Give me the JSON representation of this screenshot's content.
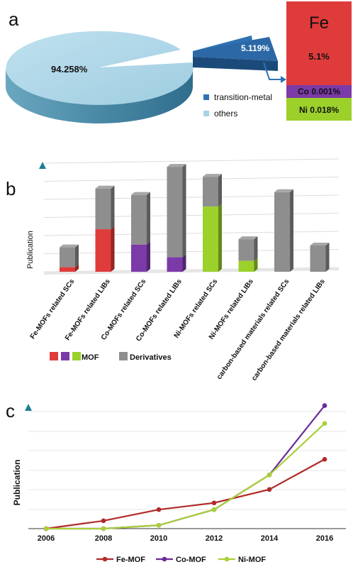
{
  "colors": {
    "fe": "#e03b3b",
    "co": "#7b3aa8",
    "ni": "#9bd12a",
    "gray": "#8e8e8e",
    "pie_others": "#a8d4e6",
    "pie_tm": "#2f72b3",
    "fe_line": "#b12a2a",
    "co_line": "#6a2d96",
    "ni_line": "#a8cf3a",
    "axis_teal": "#1c7f94"
  },
  "panel_a": {
    "label": "a",
    "others_pct": "94.258%",
    "tm_pct": "5.119%",
    "legend_tm": "transition-metal",
    "legend_others": "others",
    "breakdown_title": "Fe",
    "fe_pct": "5.1%",
    "co_label": "Co  0.001%",
    "ni_label": "Ni  0.018%"
  },
  "panel_b": {
    "label": "b",
    "ylabel": "Publication",
    "legend_mof": "MOF",
    "legend_derivatives": "Derivatives"
  },
  "panel_c": {
    "label": "c",
    "ylabel": "Publication"
  },
  "chart_data": [
    {
      "type": "pie",
      "categories": [
        "others",
        "transition-metal"
      ],
      "values": [
        94.258,
        5.119
      ],
      "breakdown": {
        "Fe": 5.1,
        "Co": 0.001,
        "Ni": 0.018
      }
    },
    {
      "type": "bar",
      "categories": [
        "Fe-MOFs related SCs",
        "Fe-MOFs related LIBs",
        "Co-MOFs related SCs",
        "Co-MOFs related LIBs",
        "Ni-MOFs related SCs",
        "Ni-MOFs related LIBs",
        "carbon-based materials related SCs",
        "carbon-based materials related  LIBs"
      ],
      "series": [
        {
          "name": "MOF",
          "values": [
            0.5,
            4.7,
            3.0,
            1.6,
            7.2,
            1.2,
            0,
            0
          ],
          "colors": [
            "#e03b3b",
            "#e03b3b",
            "#7b3aa8",
            "#7b3aa8",
            "#9bd12a",
            "#9bd12a",
            "#8e8e8e",
            "#8e8e8e"
          ]
        },
        {
          "name": "Derivatives",
          "values": [
            2.2,
            4.5,
            5.5,
            10.0,
            3.3,
            2.4,
            8.8,
            2.9
          ]
        }
      ],
      "ylim": [
        0,
        12
      ]
    },
    {
      "type": "line",
      "x": [
        "2006",
        "2008",
        "2010",
        "2012",
        "2014",
        "2016"
      ],
      "series": [
        {
          "name": "Fe-MOF",
          "values": [
            0,
            7,
            17,
            23,
            35,
            62
          ]
        },
        {
          "name": "Co-MOF",
          "values": [
            0,
            0,
            3,
            17,
            48,
            110
          ]
        },
        {
          "name": "Ni-MOF",
          "values": [
            0,
            0,
            3,
            17,
            48,
            94
          ]
        }
      ],
      "ylim": [
        0,
        118
      ]
    }
  ]
}
